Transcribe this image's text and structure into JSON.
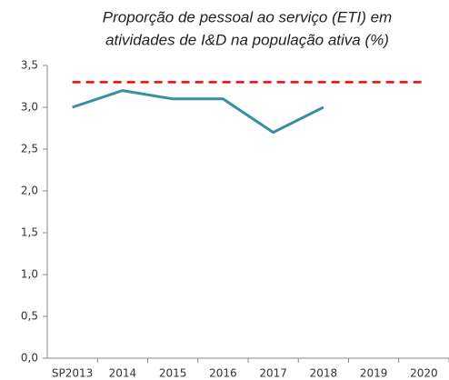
{
  "chart_data": {
    "type": "line",
    "title": [
      "Proporção de pessoal ao serviço (ETI) em",
      "atividades de I&D na população ativa  (%)"
    ],
    "categories": [
      "SP2013",
      "2014",
      "2015",
      "2016",
      "2017",
      "2018",
      "2019",
      "2020"
    ],
    "series": [
      {
        "color": "#3a8ea3",
        "values": [
          3.0,
          3.2,
          3.1,
          3.1,
          2.7,
          3.0,
          null,
          null
        ]
      },
      {
        "color": "#ff0000",
        "dashed": true,
        "values": [
          3.3,
          3.3,
          3.3,
          3.3,
          3.3,
          3.3,
          3.3,
          3.3
        ]
      }
    ],
    "ylim": [
      0,
      3.5
    ],
    "yticks": [
      {
        "value": 0,
        "label": "0,0"
      },
      {
        "value": 0.5,
        "label": "0,5"
      },
      {
        "value": 1,
        "label": "1,0"
      },
      {
        "value": 1.5,
        "label": "1,5"
      },
      {
        "value": 2,
        "label": "2,0"
      },
      {
        "value": 2.5,
        "label": "2,5"
      },
      {
        "value": 3,
        "label": "3,0"
      },
      {
        "value": 3.5,
        "label": "3,5"
      }
    ],
    "grid": false
  }
}
